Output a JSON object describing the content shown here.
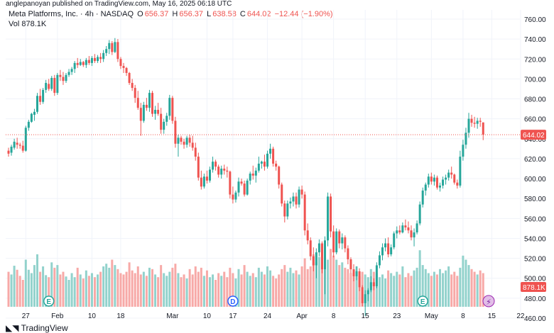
{
  "header": {
    "published": "anglepanoyan published on TradingView.com, May 16, 2025 06:18 UTC"
  },
  "legend": {
    "symbol": "Meta Platforms, Inc. · 4h · NASDAQ",
    "o_label": "O",
    "o_value": "656.37",
    "h_label": "H",
    "h_value": "656.37",
    "l_label": "L",
    "l_value": "638.58",
    "c_label": "C",
    "c_value": "644.02",
    "change": "−12.44 (−1.90%)",
    "vol_label": "Vol",
    "vol_value": "878.1K"
  },
  "price_badge": "644.02",
  "volume_badge": "878.1K",
  "footer": {
    "logo": "TradingView"
  },
  "event_markers": [
    {
      "label": "E",
      "color": "#26a69a",
      "x_index": 14
    },
    {
      "label": "D",
      "color": "#2962ff",
      "x_index": 78
    },
    {
      "label": "E",
      "color": "#26a69a",
      "x_index": 144
    }
  ],
  "colors": {
    "up": "#26a69a",
    "down": "#ef5350",
    "up_vol": "#92d2cc",
    "down_vol": "#f7a9a7",
    "grid": "#f0f3fa",
    "price_line": "#ef5350"
  },
  "chart_data": {
    "type": "candlestick",
    "title": "Meta Platforms, Inc. · 4h · NASDAQ",
    "y_axis": {
      "side": "right",
      "range": [
        455,
        770
      ],
      "ticks": [
        460,
        480,
        500,
        520,
        540,
        560,
        580,
        600,
        620,
        640,
        660,
        680,
        700,
        720,
        740,
        760
      ]
    },
    "x_axis": {
      "tick_labels": [
        "27",
        "Feb",
        "10",
        "18",
        "Mar",
        "10",
        "17",
        "24",
        "Apr",
        "8",
        "15",
        "23",
        "May",
        "8",
        "15",
        "22"
      ],
      "tick_indices": [
        6,
        17,
        29,
        39,
        57,
        69,
        78,
        90,
        102,
        113,
        124,
        135,
        147,
        158,
        168,
        178
      ]
    },
    "grid": true,
    "last_price": 644.02,
    "ohlc": [
      [
        628,
        631,
        622,
        625
      ],
      [
        626,
        634,
        623,
        632
      ],
      [
        631,
        640,
        629,
        637
      ],
      [
        636,
        641,
        630,
        634
      ],
      [
        634,
        636,
        630,
        633
      ],
      [
        633,
        638,
        626,
        628
      ],
      [
        628,
        653,
        627,
        651
      ],
      [
        651,
        659,
        648,
        657
      ],
      [
        657,
        666,
        656,
        665
      ],
      [
        664,
        670,
        658,
        667
      ],
      [
        667,
        686,
        665,
        683
      ],
      [
        683,
        690,
        674,
        677
      ],
      [
        677,
        691,
        675,
        689
      ],
      [
        689,
        699,
        686,
        696
      ],
      [
        695,
        700,
        688,
        690
      ],
      [
        690,
        703,
        688,
        701
      ],
      [
        701,
        704,
        683,
        686
      ],
      [
        686,
        706,
        684,
        704
      ],
      [
        704,
        709,
        698,
        702
      ],
      [
        702,
        707,
        694,
        698
      ],
      [
        698,
        706,
        696,
        704
      ],
      [
        704,
        710,
        702,
        707
      ],
      [
        707,
        712,
        704,
        710
      ],
      [
        710,
        718,
        706,
        716
      ],
      [
        716,
        721,
        711,
        714
      ],
      [
        714,
        720,
        713,
        717
      ],
      [
        717,
        718,
        712,
        714
      ],
      [
        714,
        721,
        711,
        719
      ],
      [
        719,
        723,
        714,
        716
      ],
      [
        716,
        723,
        713,
        721
      ],
      [
        721,
        725,
        716,
        718
      ],
      [
        718,
        724,
        716,
        722
      ],
      [
        722,
        726,
        716,
        720
      ],
      [
        720,
        729,
        717,
        726
      ],
      [
        726,
        733,
        723,
        730
      ],
      [
        730,
        739,
        725,
        736
      ],
      [
        736,
        738,
        724,
        727
      ],
      [
        727,
        741,
        726,
        737
      ],
      [
        737,
        740,
        717,
        720
      ],
      [
        720,
        722,
        710,
        713
      ],
      [
        713,
        716,
        706,
        711
      ],
      [
        711,
        712,
        703,
        706
      ],
      [
        706,
        707,
        694,
        696
      ],
      [
        696,
        700,
        688,
        691
      ],
      [
        691,
        694,
        676,
        681
      ],
      [
        681,
        688,
        669,
        671
      ],
      [
        671,
        676,
        643,
        658
      ],
      [
        658,
        677,
        656,
        674
      ],
      [
        674,
        681,
        668,
        671
      ],
      [
        671,
        689,
        667,
        686
      ],
      [
        686,
        688,
        662,
        665
      ],
      [
        665,
        673,
        659,
        669
      ],
      [
        669,
        676,
        663,
        665
      ],
      [
        665,
        671,
        645,
        649
      ],
      [
        649,
        660,
        645,
        657
      ],
      [
        657,
        666,
        653,
        663
      ],
      [
        663,
        684,
        659,
        681
      ],
      [
        681,
        683,
        655,
        658
      ],
      [
        658,
        662,
        631,
        635
      ],
      [
        635,
        644,
        622,
        641
      ],
      [
        641,
        643,
        634,
        637
      ],
      [
        637,
        640,
        630,
        634
      ],
      [
        634,
        643,
        631,
        641
      ],
      [
        641,
        644,
        632,
        636
      ],
      [
        636,
        643,
        628,
        631
      ],
      [
        631,
        636,
        618,
        622
      ],
      [
        622,
        626,
        598,
        601
      ],
      [
        601,
        608,
        589,
        592
      ],
      [
        592,
        605,
        590,
        602
      ],
      [
        602,
        608,
        595,
        598
      ],
      [
        598,
        612,
        596,
        609
      ],
      [
        609,
        622,
        606,
        617
      ],
      [
        617,
        619,
        608,
        612
      ],
      [
        612,
        614,
        601,
        604
      ],
      [
        604,
        613,
        600,
        610
      ],
      [
        610,
        614,
        604,
        608
      ],
      [
        608,
        612,
        601,
        607
      ],
      [
        607,
        608,
        580,
        584
      ],
      [
        584,
        592,
        575,
        579
      ],
      [
        579,
        588,
        576,
        586
      ],
      [
        586,
        601,
        582,
        597
      ],
      [
        597,
        600,
        593,
        595
      ],
      [
        595,
        598,
        582,
        584
      ],
      [
        584,
        600,
        583,
        598
      ],
      [
        598,
        607,
        594,
        605
      ],
      [
        605,
        613,
        599,
        603
      ],
      [
        603,
        611,
        596,
        608
      ],
      [
        608,
        622,
        606,
        615
      ],
      [
        615,
        618,
        610,
        617
      ],
      [
        617,
        624,
        608,
        612
      ],
      [
        612,
        628,
        610,
        625
      ],
      [
        625,
        635,
        620,
        630
      ],
      [
        630,
        632,
        612,
        615
      ],
      [
        615,
        618,
        608,
        612
      ],
      [
        612,
        613,
        590,
        594
      ],
      [
        594,
        596,
        572,
        575
      ],
      [
        575,
        578,
        556,
        562
      ],
      [
        562,
        578,
        559,
        575
      ],
      [
        575,
        581,
        570,
        577
      ],
      [
        577,
        586,
        572,
        582
      ],
      [
        582,
        586,
        570,
        574
      ],
      [
        574,
        592,
        571,
        589
      ],
      [
        589,
        593,
        580,
        584
      ],
      [
        584,
        587,
        543,
        548
      ],
      [
        548,
        555,
        534,
        538
      ],
      [
        538,
        541,
        518,
        522
      ],
      [
        522,
        531,
        507,
        513
      ],
      [
        513,
        530,
        500,
        526
      ],
      [
        526,
        539,
        522,
        535
      ],
      [
        535,
        537,
        505,
        509
      ],
      [
        509,
        542,
        484,
        538
      ],
      [
        538,
        586,
        532,
        582
      ],
      [
        582,
        585,
        541,
        547
      ],
      [
        547,
        553,
        521,
        526
      ],
      [
        526,
        550,
        524,
        547
      ],
      [
        547,
        549,
        530,
        535
      ],
      [
        535,
        545,
        529,
        541
      ],
      [
        541,
        543,
        526,
        530
      ],
      [
        530,
        533,
        514,
        519
      ],
      [
        519,
        521,
        505,
        509
      ],
      [
        509,
        514,
        497,
        502
      ],
      [
        502,
        512,
        498,
        507
      ],
      [
        507,
        510,
        487,
        491
      ],
      [
        491,
        493,
        472,
        475
      ],
      [
        475,
        488,
        462,
        484
      ],
      [
        484,
        490,
        477,
        488
      ],
      [
        488,
        502,
        486,
        496
      ],
      [
        496,
        500,
        488,
        492
      ],
      [
        492,
        516,
        490,
        513
      ],
      [
        513,
        527,
        510,
        523
      ],
      [
        523,
        535,
        518,
        531
      ],
      [
        531,
        540,
        527,
        535
      ],
      [
        535,
        541,
        521,
        524
      ],
      [
        524,
        534,
        522,
        531
      ],
      [
        531,
        547,
        529,
        545
      ],
      [
        545,
        552,
        540,
        548
      ],
      [
        548,
        553,
        544,
        546
      ],
      [
        546,
        556,
        545,
        553
      ],
      [
        553,
        559,
        548,
        551
      ],
      [
        551,
        557,
        545,
        548
      ],
      [
        548,
        553,
        538,
        541
      ],
      [
        541,
        550,
        532,
        546
      ],
      [
        546,
        558,
        544,
        555
      ],
      [
        555,
        577,
        553,
        574
      ],
      [
        574,
        591,
        571,
        588
      ],
      [
        588,
        596,
        583,
        594
      ],
      [
        594,
        605,
        591,
        602
      ],
      [
        602,
        606,
        594,
        597
      ],
      [
        597,
        604,
        593,
        601
      ],
      [
        601,
        603,
        589,
        591
      ],
      [
        591,
        596,
        587,
        593
      ],
      [
        593,
        602,
        590,
        599
      ],
      [
        599,
        604,
        594,
        601
      ],
      [
        601,
        609,
        598,
        606
      ],
      [
        606,
        612,
        600,
        604
      ],
      [
        604,
        605,
        594,
        596
      ],
      [
        596,
        599,
        590,
        593
      ],
      [
        593,
        628,
        591,
        622
      ],
      [
        622,
        639,
        618,
        634
      ],
      [
        634,
        651,
        630,
        646
      ],
      [
        646,
        666,
        641,
        660
      ],
      [
        660,
        664,
        652,
        656
      ],
      [
        656,
        662,
        651,
        655
      ],
      [
        655,
        661,
        650,
        658
      ],
      [
        658,
        661,
        652,
        657
      ],
      [
        656.37,
        656.37,
        638.58,
        644.02
      ]
    ],
    "volume": [
      0.52,
      0.48,
      0.61,
      0.55,
      0.46,
      0.4,
      0.7,
      0.55,
      0.5,
      0.62,
      0.78,
      0.52,
      0.6,
      0.47,
      0.44,
      0.66,
      0.58,
      0.62,
      0.48,
      0.52,
      0.45,
      0.4,
      0.5,
      0.44,
      0.58,
      0.48,
      0.42,
      0.54,
      0.46,
      0.5,
      0.44,
      0.48,
      0.52,
      0.6,
      0.64,
      0.58,
      0.7,
      0.62,
      0.56,
      0.5,
      0.48,
      0.52,
      0.66,
      0.54,
      0.5,
      0.6,
      0.48,
      0.52,
      0.46,
      0.58,
      0.56,
      0.48,
      0.44,
      0.62,
      0.5,
      0.46,
      0.52,
      0.58,
      0.64,
      0.5,
      0.44,
      0.48,
      0.42,
      0.56,
      0.48,
      0.6,
      0.52,
      0.58,
      0.46,
      0.54,
      0.44,
      0.48,
      0.4,
      0.5,
      0.46,
      0.52,
      0.44,
      0.58,
      0.5,
      0.42,
      0.56,
      0.48,
      0.62,
      0.52,
      0.46,
      0.5,
      0.44,
      0.58,
      0.52,
      0.48,
      0.6,
      0.54,
      0.46,
      0.42,
      0.48,
      0.56,
      0.62,
      0.52,
      0.58,
      0.5,
      0.54,
      0.48,
      0.6,
      0.72,
      0.56,
      0.6,
      0.78,
      0.66,
      0.74,
      0.92,
      0.8,
      0.7,
      0.86,
      0.76,
      0.7,
      0.62,
      0.66,
      0.58,
      0.56,
      0.5,
      0.54,
      0.6,
      0.46,
      0.52,
      0.48,
      0.44,
      0.56,
      0.52,
      0.5,
      0.44,
      0.48,
      0.42,
      0.54,
      0.5,
      0.46,
      0.52,
      0.48,
      0.6,
      0.44,
      0.5,
      0.46,
      0.54,
      0.58,
      0.84,
      0.62,
      0.56,
      0.5,
      0.46,
      0.52,
      0.48,
      0.56,
      0.5,
      0.54,
      0.6,
      0.48,
      0.52,
      0.46,
      0.58,
      0.76,
      0.7,
      0.62,
      0.56,
      0.52,
      0.48,
      0.54,
      0.5
    ],
    "volume_unit": "relative"
  }
}
